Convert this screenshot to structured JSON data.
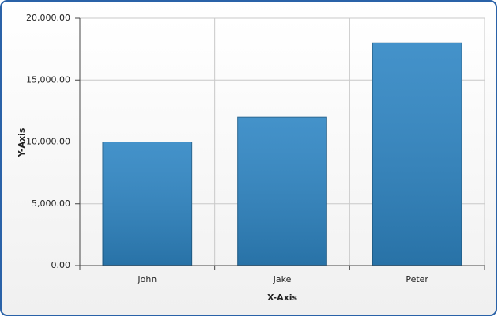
{
  "chart_data": {
    "type": "bar",
    "categories": [
      "John",
      "Jake",
      "Peter"
    ],
    "values": [
      10000,
      12000,
      18000
    ],
    "color": "#2f86c4",
    "x_label": "X-Axis",
    "y_label": "Y-Axis",
    "ylim": [
      0,
      20000
    ],
    "yticks": [
      {
        "value": 0,
        "label": "0.00"
      },
      {
        "value": 5000,
        "label": "5,000.00"
      },
      {
        "value": 10000,
        "label": "10,000.00"
      },
      {
        "value": 15000,
        "label": "15,000.00"
      },
      {
        "value": 20000,
        "label": "20,000.00"
      }
    ],
    "grid": true
  }
}
